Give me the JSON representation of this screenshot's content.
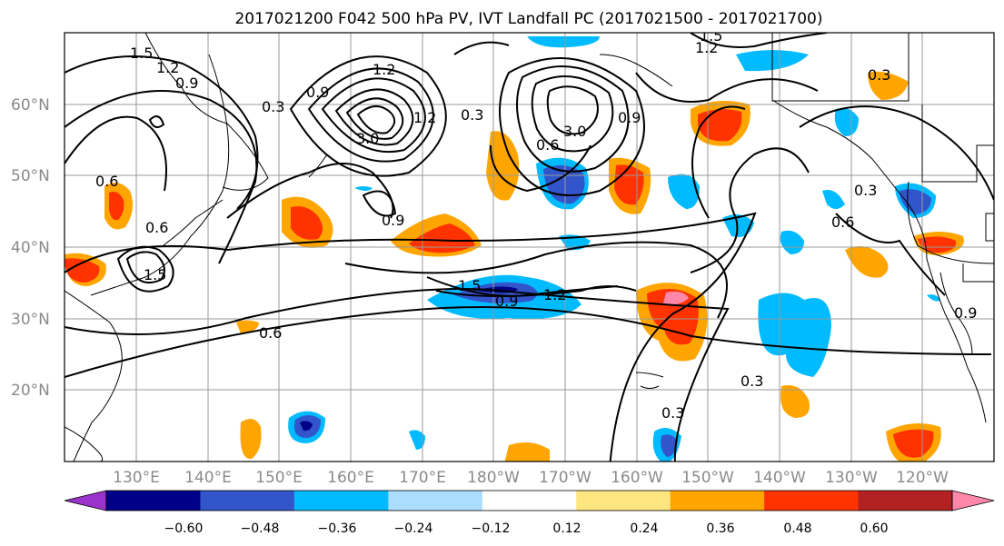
{
  "title": "2017021200 F042 500 hPa PV, IVT Landfall PC (2017021500 - 2017021700)",
  "lat_labels": [
    "60°N",
    "50°N",
    "40°N",
    "30°N",
    "20°N"
  ],
  "lon_labels": [
    "130°E",
    "140°E",
    "150°E",
    "160°E",
    "170°E",
    "180°W",
    "170°W",
    "160°W",
    "150°W",
    "140°W",
    "130°W",
    "120°W"
  ],
  "colorbar": {
    "tick_labels": [
      "−0.60",
      "−0.48",
      "−0.36",
      "−0.24",
      "−0.12",
      "0.12",
      "0.24",
      "0.36",
      "0.48",
      "0.60"
    ],
    "colors": [
      "#9933cc",
      "#000088",
      "#3355cc",
      "#00bbff",
      "#aaddff",
      "#ffffff",
      "#ffe680",
      "#ffa500",
      "#ff3300",
      "#b22222",
      "#ff88aa"
    ]
  },
  "contour_labels": [
    "1.5",
    "1.2",
    "0.9",
    "0.3",
    "0.6",
    "1.2",
    "0.9",
    "3.0",
    "0.3",
    "3.0",
    "0.6",
    "0.9",
    "1.5",
    "0.9",
    "1.2",
    "0.6",
    "0.6",
    "0.3",
    "0.3",
    "0.3",
    "0.6",
    "0.3",
    "0.9",
    "1.5",
    "1.2",
    "0.9",
    "1.2",
    "1.5"
  ],
  "colors": {
    "contour": "#000000",
    "grid": "#999999",
    "coast": "#000000"
  }
}
